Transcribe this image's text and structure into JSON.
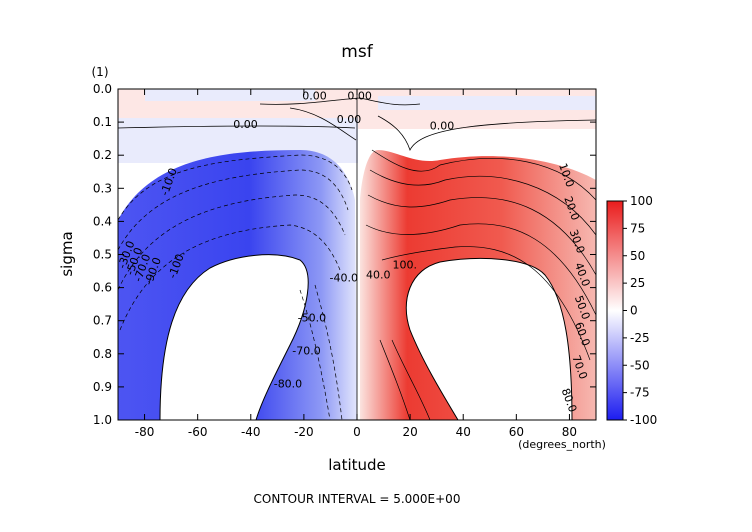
{
  "chart_data": {
    "type": "contour",
    "title": "msf",
    "xlabel": "latitude",
    "ylabel": "sigma",
    "x_units": "(degrees_north)",
    "y_units": "(1)",
    "footer": "CONTOUR INTERVAL = 5.000E+00",
    "xlim": [
      -90,
      90
    ],
    "ylim": [
      0.0,
      1.0
    ],
    "y_inverted": true,
    "x_ticks": [
      {
        "value": -80,
        "label": "-80"
      },
      {
        "value": -60,
        "label": "-60"
      },
      {
        "value": -40,
        "label": "-40"
      },
      {
        "value": -20,
        "label": "-20"
      },
      {
        "value": 0,
        "label": "0"
      },
      {
        "value": 20,
        "label": "20"
      },
      {
        "value": 40,
        "label": "40"
      },
      {
        "value": 60,
        "label": "60"
      },
      {
        "value": 80,
        "label": "80"
      }
    ],
    "y_ticks": [
      {
        "value": 0.0,
        "label": "0.0"
      },
      {
        "value": 0.1,
        "label": "0.1"
      },
      {
        "value": 0.2,
        "label": "0.2"
      },
      {
        "value": 0.3,
        "label": "0.3"
      },
      {
        "value": 0.4,
        "label": "0.4"
      },
      {
        "value": 0.5,
        "label": "0.5"
      },
      {
        "value": 0.6,
        "label": "0.6"
      },
      {
        "value": 0.7,
        "label": "0.7"
      },
      {
        "value": 0.8,
        "label": "0.8"
      },
      {
        "value": 0.9,
        "label": "0.9"
      },
      {
        "value": 1.0,
        "label": "1.0"
      }
    ],
    "colorbar": {
      "range": [
        -100,
        100
      ],
      "colors": {
        "negative": "#1c1cf0",
        "zero": "#ffffff",
        "positive": "#ea1c1c"
      },
      "ticks": [
        {
          "value": 100,
          "label": "100"
        },
        {
          "value": 75,
          "label": "75"
        },
        {
          "value": 50,
          "label": "50"
        },
        {
          "value": 25,
          "label": "25"
        },
        {
          "value": 0,
          "label": "0"
        },
        {
          "value": -25,
          "label": "-25"
        },
        {
          "value": -50,
          "label": "-50"
        },
        {
          "value": -75,
          "label": "-75"
        },
        {
          "value": -100,
          "label": "-100"
        }
      ]
    },
    "contour_interval": 5,
    "cells": {
      "south": {
        "center_lat": -52,
        "center_sigma": 0.55,
        "peak": -100
      },
      "north": {
        "center_lat": 52,
        "center_sigma": 0.55,
        "peak": 100
      }
    },
    "contour_labels": [
      {
        "text": "0.00",
        "lat": -42,
        "sigma": 0.105
      },
      {
        "text": "0.00",
        "lat": -16,
        "sigma": 0.02
      },
      {
        "text": "0.00",
        "lat": -3,
        "sigma": 0.09
      },
      {
        "text": "0.00",
        "lat": 1,
        "sigma": 0.02
      },
      {
        "text": "0.00",
        "lat": 32,
        "sigma": 0.11
      },
      {
        "text": "-10.0",
        "lat": -71,
        "sigma": 0.28
      },
      {
        "text": "10.0",
        "lat": 79,
        "sigma": 0.26
      },
      {
        "text": "20.0",
        "lat": 81,
        "sigma": 0.36
      },
      {
        "text": "30.0",
        "lat": 83,
        "sigma": 0.46
      },
      {
        "text": "40.0",
        "lat": 85,
        "sigma": 0.56
      },
      {
        "text": "50.0",
        "lat": 85,
        "sigma": 0.66
      },
      {
        "text": "60.0",
        "lat": 85,
        "sigma": 0.74
      },
      {
        "text": "70.0",
        "lat": 84,
        "sigma": 0.84
      },
      {
        "text": "80.0",
        "lat": 80,
        "sigma": 0.94
      },
      {
        "text": "-30.0",
        "lat": -87,
        "sigma": 0.5
      },
      {
        "text": "-50.0",
        "lat": -84,
        "sigma": 0.52
      },
      {
        "text": "-70.0",
        "lat": -81,
        "sigma": 0.54
      },
      {
        "text": "-90.0",
        "lat": -77,
        "sigma": 0.55
      },
      {
        "text": "-100.",
        "lat": -68,
        "sigma": 0.53
      },
      {
        "text": "-50.0",
        "lat": -17,
        "sigma": 0.69
      },
      {
        "text": "-70.0",
        "lat": -19,
        "sigma": 0.79
      },
      {
        "text": "-80.0",
        "lat": -26,
        "sigma": 0.89
      },
      {
        "text": "-40.0",
        "lat": -5,
        "sigma": 0.57
      },
      {
        "text": "100.",
        "lat": 18,
        "sigma": 0.53
      },
      {
        "text": "40.0",
        "lat": 8,
        "sigma": 0.56
      }
    ]
  }
}
